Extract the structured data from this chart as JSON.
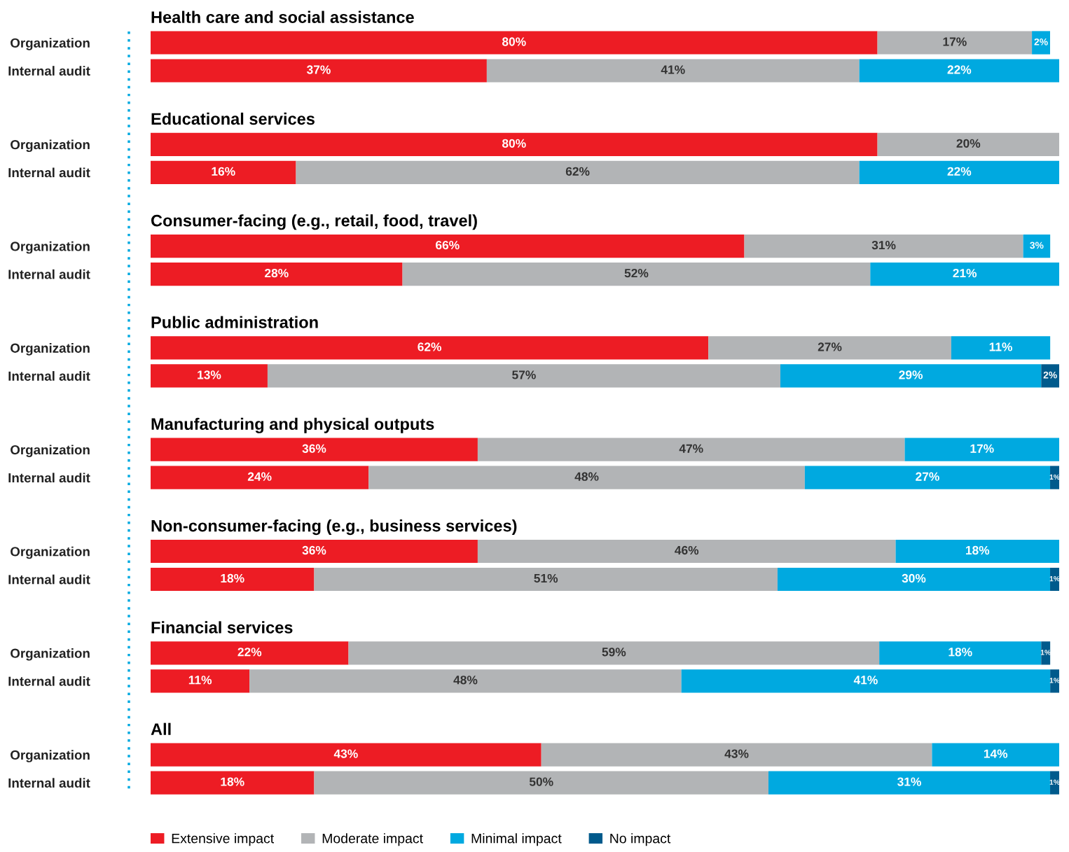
{
  "chart_data": [
    {
      "type": "bar",
      "orientation": "horizontal",
      "stacked": true,
      "title": "Health care and social assistance",
      "categories": [
        "Organization",
        "Internal audit"
      ],
      "tick_labels": "y",
      "grid": false,
      "legend": false,
      "series": [
        {
          "color": "#ed1c24",
          "values": [
            80,
            37
          ],
          "value_labels": [
            "80%",
            "37%"
          ]
        },
        {
          "color": "#b2b4b6",
          "values": [
            17,
            41
          ],
          "value_labels": [
            "17%",
            "41%"
          ]
        },
        {
          "color": "#00a9e0",
          "values": [
            2,
            22
          ],
          "value_labels": [
            "2%",
            "22%"
          ]
        },
        {
          "color": "#005a8c",
          "values": [
            null,
            null
          ],
          "value_labels": [
            null,
            null
          ]
        }
      ]
    },
    {
      "type": "bar",
      "orientation": "horizontal",
      "stacked": true,
      "title": "Educational services",
      "categories": [
        "Organization",
        "Internal audit"
      ],
      "tick_labels": "y",
      "grid": false,
      "legend": false,
      "series": [
        {
          "color": "#ed1c24",
          "values": [
            80,
            16
          ],
          "value_labels": [
            "80%",
            "16%"
          ]
        },
        {
          "color": "#b2b4b6",
          "values": [
            20,
            62
          ],
          "value_labels": [
            "20%",
            "62%"
          ]
        },
        {
          "color": "#00a9e0",
          "values": [
            null,
            22
          ],
          "value_labels": [
            null,
            "22%"
          ]
        },
        {
          "color": "#005a8c",
          "values": [
            null,
            null
          ],
          "value_labels": [
            null,
            null
          ]
        }
      ]
    },
    {
      "type": "bar",
      "orientation": "horizontal",
      "stacked": true,
      "title": "Consumer-facing (e.g., retail, food, travel)",
      "categories": [
        "Organization",
        "Internal audit"
      ],
      "tick_labels": "y",
      "grid": false,
      "legend": false,
      "series": [
        {
          "color": "#ed1c24",
          "values": [
            66,
            28
          ],
          "value_labels": [
            "66%",
            "28%"
          ]
        },
        {
          "color": "#b2b4b6",
          "values": [
            31,
            52
          ],
          "value_labels": [
            "31%",
            "52%"
          ]
        },
        {
          "color": "#00a9e0",
          "values": [
            3,
            21
          ],
          "value_labels": [
            "3%",
            "21%"
          ]
        },
        {
          "color": "#005a8c",
          "values": [
            null,
            null
          ],
          "value_labels": [
            null,
            null
          ]
        }
      ]
    },
    {
      "type": "bar",
      "orientation": "horizontal",
      "stacked": true,
      "title": "Public administration",
      "categories": [
        "Organization",
        "Internal audit"
      ],
      "tick_labels": "y",
      "grid": false,
      "legend": false,
      "series": [
        {
          "color": "#ed1c24",
          "values": [
            62,
            13
          ],
          "value_labels": [
            "62%",
            "13%"
          ]
        },
        {
          "color": "#b2b4b6",
          "values": [
            27,
            57
          ],
          "value_labels": [
            "27%",
            "57%"
          ]
        },
        {
          "color": "#00a9e0",
          "values": [
            11,
            29
          ],
          "value_labels": [
            "11%",
            "29%"
          ]
        },
        {
          "color": "#005a8c",
          "values": [
            null,
            2
          ],
          "value_labels": [
            null,
            "2%"
          ]
        }
      ]
    },
    {
      "type": "bar",
      "orientation": "horizontal",
      "stacked": true,
      "title": "Manufacturing and physical outputs",
      "categories": [
        "Organization",
        "Internal audit"
      ],
      "tick_labels": "y",
      "grid": false,
      "legend": false,
      "series": [
        {
          "color": "#ed1c24",
          "values": [
            36,
            24
          ],
          "value_labels": [
            "36%",
            "24%"
          ]
        },
        {
          "color": "#b2b4b6",
          "values": [
            47,
            48
          ],
          "value_labels": [
            "47%",
            "48%"
          ]
        },
        {
          "color": "#00a9e0",
          "values": [
            17,
            27
          ],
          "value_labels": [
            "17%",
            "27%"
          ]
        },
        {
          "color": "#005a8c",
          "values": [
            null,
            1
          ],
          "value_labels": [
            null,
            "1%"
          ]
        }
      ]
    },
    {
      "type": "bar",
      "orientation": "horizontal",
      "stacked": true,
      "title": "Non-consumer-facing (e.g., business services)",
      "categories": [
        "Organization",
        "Internal audit"
      ],
      "tick_labels": "y",
      "grid": false,
      "legend": false,
      "series": [
        {
          "color": "#ed1c24",
          "values": [
            36,
            18
          ],
          "value_labels": [
            "36%",
            "18%"
          ]
        },
        {
          "color": "#b2b4b6",
          "values": [
            46,
            51
          ],
          "value_labels": [
            "46%",
            "51%"
          ]
        },
        {
          "color": "#00a9e0",
          "values": [
            18,
            30
          ],
          "value_labels": [
            "18%",
            "30%"
          ]
        },
        {
          "color": "#005a8c",
          "values": [
            null,
            1
          ],
          "value_labels": [
            null,
            "1%"
          ]
        }
      ]
    },
    {
      "type": "bar",
      "orientation": "horizontal",
      "stacked": true,
      "title": "Financial services",
      "categories": [
        "Organization",
        "Internal audit"
      ],
      "tick_labels": "y",
      "grid": false,
      "legend": false,
      "series": [
        {
          "color": "#ed1c24",
          "values": [
            22,
            11
          ],
          "value_labels": [
            "22%",
            "11%"
          ]
        },
        {
          "color": "#b2b4b6",
          "values": [
            59,
            48
          ],
          "value_labels": [
            "59%",
            "48%"
          ]
        },
        {
          "color": "#00a9e0",
          "values": [
            18,
            41
          ],
          "value_labels": [
            "18%",
            "41%"
          ]
        },
        {
          "color": "#005a8c",
          "values": [
            1,
            1
          ],
          "value_labels": [
            "1%",
            "1%"
          ]
        }
      ]
    },
    {
      "type": "bar",
      "orientation": "horizontal",
      "stacked": true,
      "title": "All",
      "categories": [
        "Organization",
        "Internal audit"
      ],
      "tick_labels": "y",
      "grid": false,
      "legend": "bottom",
      "series": [
        {
          "name": "Extensive impact",
          "color": "#ed1c24",
          "values": [
            43,
            18
          ],
          "value_labels": [
            "43%",
            "18%"
          ]
        },
        {
          "name": "Moderate impact",
          "color": "#b2b4b6",
          "values": [
            43,
            50
          ],
          "value_labels": [
            "43%",
            "50%"
          ]
        },
        {
          "name": "Minimal impact",
          "color": "#00a9e0",
          "values": [
            14,
            31
          ],
          "value_labels": [
            "14%",
            "31%"
          ]
        },
        {
          "name": "No impact",
          "color": "#005a8c",
          "values": [
            null,
            1
          ],
          "value_labels": [
            null,
            "1%"
          ]
        }
      ]
    }
  ]
}
